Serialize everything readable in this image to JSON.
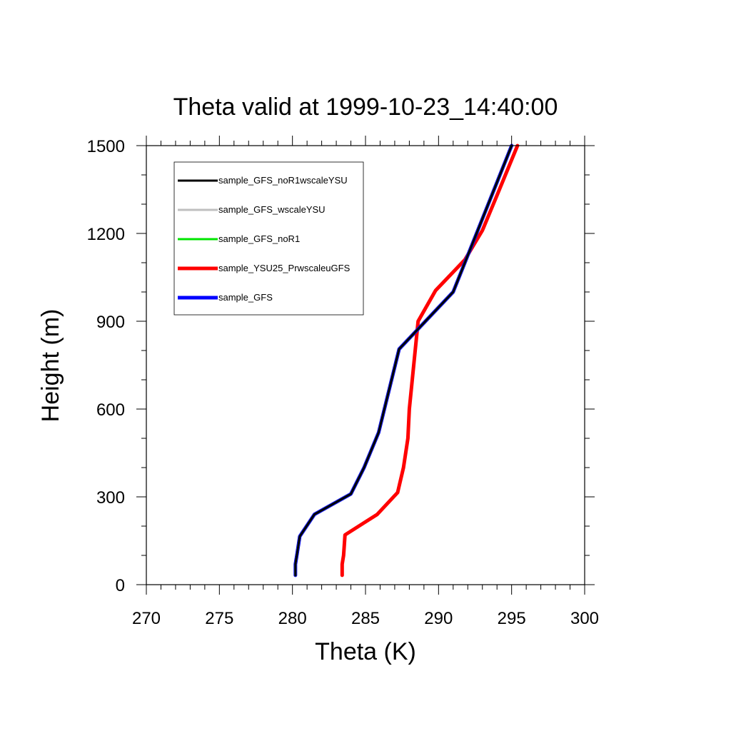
{
  "chart_data": {
    "type": "line",
    "title": "Theta valid at 1999-10-23_14:40:00",
    "xlabel": "Theta (K)",
    "ylabel": "Height (m)",
    "xlim": [
      270,
      300
    ],
    "ylim": [
      0,
      1500
    ],
    "x_ticks": [
      270,
      275,
      280,
      285,
      290,
      295,
      300
    ],
    "y_ticks": [
      0,
      300,
      600,
      900,
      1200,
      1500
    ],
    "x_tick_labels": [
      "270",
      "275",
      "280",
      "285",
      "290",
      "295",
      "300"
    ],
    "y_tick_labels": [
      "0",
      "300",
      "600",
      "900",
      "1200",
      "1500"
    ],
    "x_minor_step": 1,
    "y_minor_step": 100,
    "grid": false,
    "legend_position": "top-left",
    "series": [
      {
        "name": "sample_GFS_noR1wscaleYSU",
        "color": "#000000",
        "x": [
          280.2,
          280.2,
          280.3,
          280.5,
          281.5,
          284.0,
          284.9,
          285.9,
          287.3,
          291.0,
          295.0
        ],
        "y": [
          32,
          70,
          100,
          165,
          240,
          310,
          400,
          520,
          805,
          1000,
          1500
        ]
      },
      {
        "name": "sample_GFS_wscaleYSU",
        "color": "#bfbfbf",
        "x": [
          280.2,
          280.2,
          280.3,
          280.5,
          281.5,
          284.0,
          284.9,
          285.9,
          287.3,
          291.0,
          295.0
        ],
        "y": [
          32,
          70,
          100,
          165,
          240,
          310,
          400,
          520,
          805,
          1000,
          1500
        ]
      },
      {
        "name": "sample_GFS_noR1",
        "color": "#00e600",
        "x": [
          280.2,
          280.2,
          280.3,
          280.5,
          281.5,
          284.0,
          284.9,
          285.9,
          287.3,
          291.0,
          295.0
        ],
        "y": [
          32,
          70,
          100,
          165,
          240,
          310,
          400,
          520,
          805,
          1000,
          1500
        ]
      },
      {
        "name": "sample_YSU25_PrwscaleuGFS",
        "color": "#ff0000",
        "x": [
          283.4,
          283.4,
          283.5,
          283.6,
          285.8,
          287.2,
          287.6,
          287.9,
          288.0,
          288.2,
          288.4,
          288.6,
          289.8,
          291.8,
          293.0,
          294.0,
          295.4
        ],
        "y": [
          32,
          70,
          100,
          170,
          240,
          315,
          400,
          500,
          600,
          700,
          800,
          900,
          1005,
          1110,
          1210,
          1330,
          1500
        ]
      },
      {
        "name": "sample_GFS",
        "color": "#0000ff",
        "x": [
          280.2,
          280.2,
          280.3,
          280.5,
          281.5,
          284.0,
          284.9,
          285.9,
          287.3,
          291.0,
          295.0
        ],
        "y": [
          32,
          70,
          100,
          165,
          240,
          310,
          400,
          520,
          805,
          1000,
          1500
        ]
      }
    ]
  }
}
